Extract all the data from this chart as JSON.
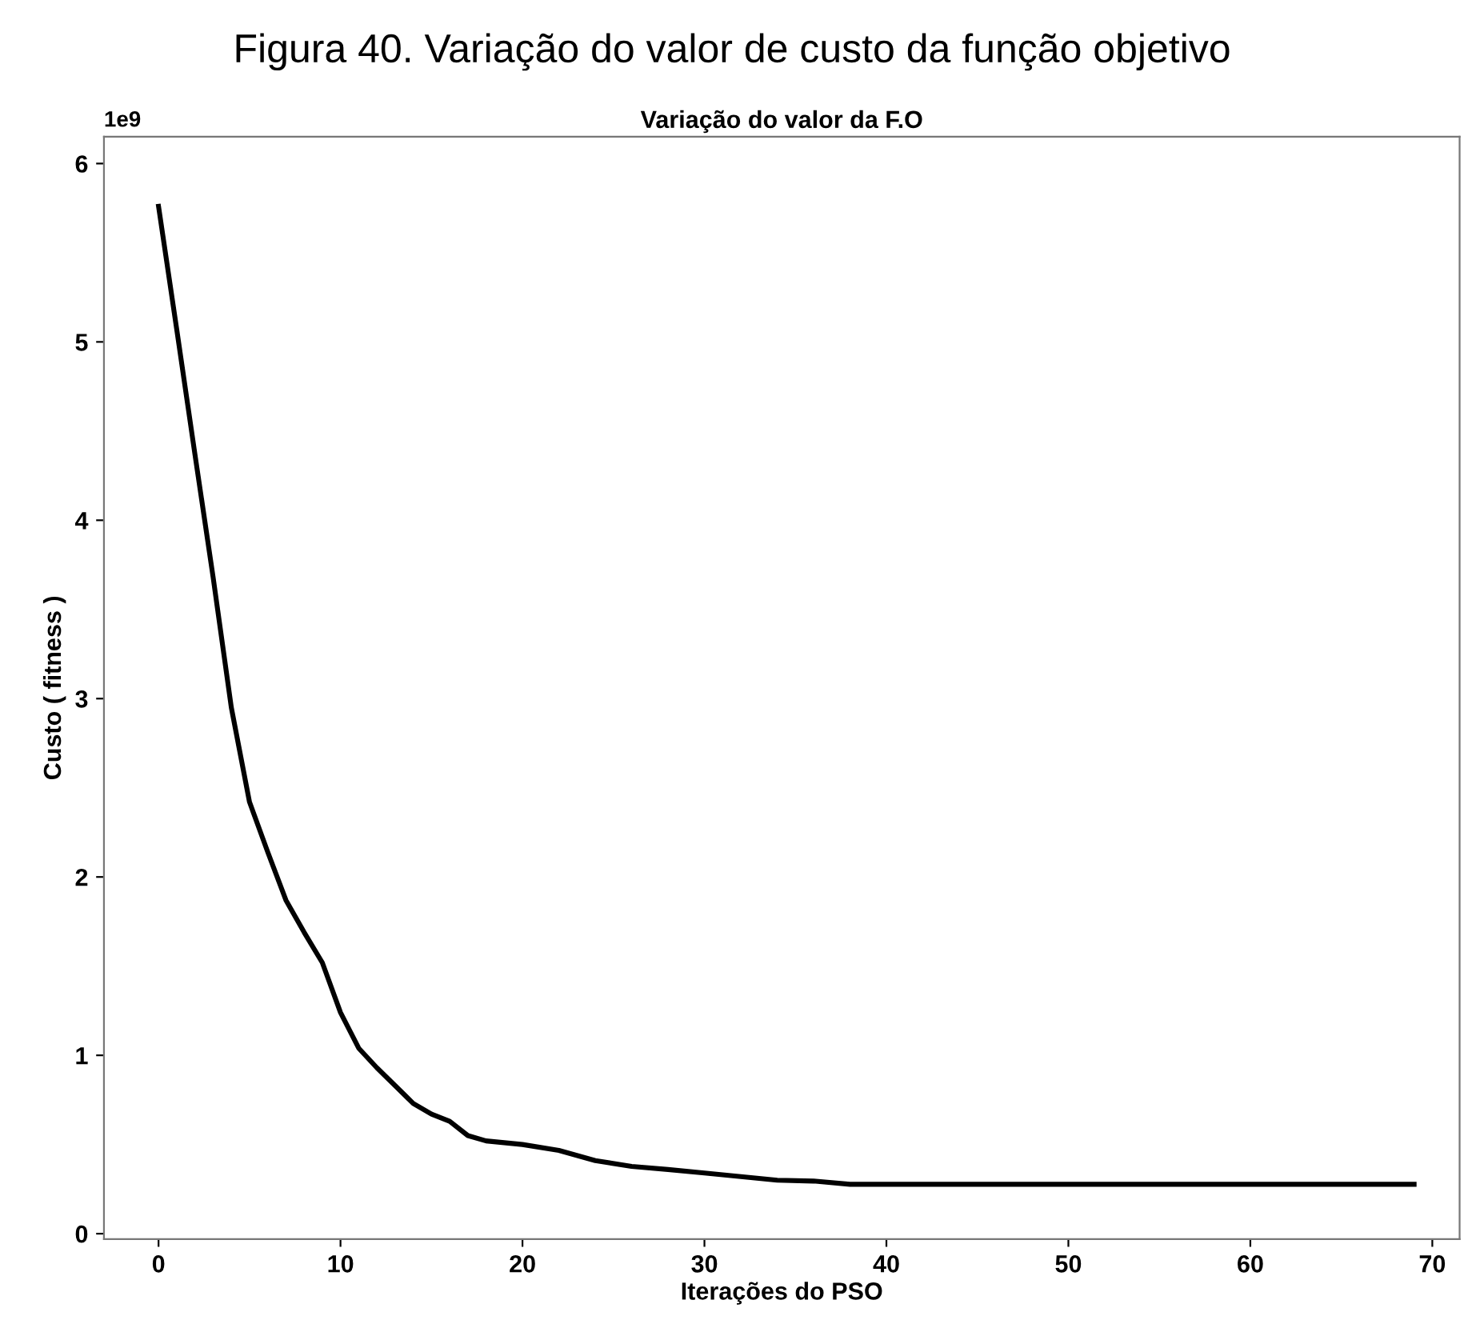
{
  "chart_data": {
    "type": "line",
    "title": "Figura 40. Variação do valor de custo da função objetivo",
    "subtitle": "Variação do valor da F.O",
    "xlabel": "Iterações do PSO",
    "ylabel": "Custo ( fitness )",
    "annotations": [
      "1e9"
    ],
    "x": [
      0,
      1,
      2,
      3,
      4,
      5,
      6,
      7,
      8,
      9,
      10,
      11,
      12,
      13,
      14,
      15,
      16,
      17,
      18,
      19,
      20,
      22,
      24,
      26,
      28,
      30,
      32,
      34,
      36,
      38,
      69
    ],
    "series": [
      {
        "color": "#000000",
        "values": [
          5.76,
          5.07,
          4.37,
          3.68,
          2.95,
          2.42,
          2.14,
          1.87,
          1.69,
          1.52,
          1.24,
          1.04,
          0.93,
          0.83,
          0.73,
          0.67,
          0.63,
          0.55,
          0.52,
          0.51,
          0.5,
          0.467,
          0.41,
          0.377,
          0.36,
          0.34,
          0.32,
          0.3,
          0.295,
          0.277,
          0.277
        ]
      }
    ],
    "xlim": [
      -3,
      71.5
    ],
    "ylim": [
      -0.03,
      6.15
    ],
    "xticks": [
      0,
      10,
      20,
      30,
      40,
      50,
      60,
      70
    ],
    "yticks": [
      0,
      1,
      2,
      3,
      4,
      5,
      6
    ],
    "grid": false,
    "legend": false,
    "marker": "none",
    "line_style": "solid"
  }
}
